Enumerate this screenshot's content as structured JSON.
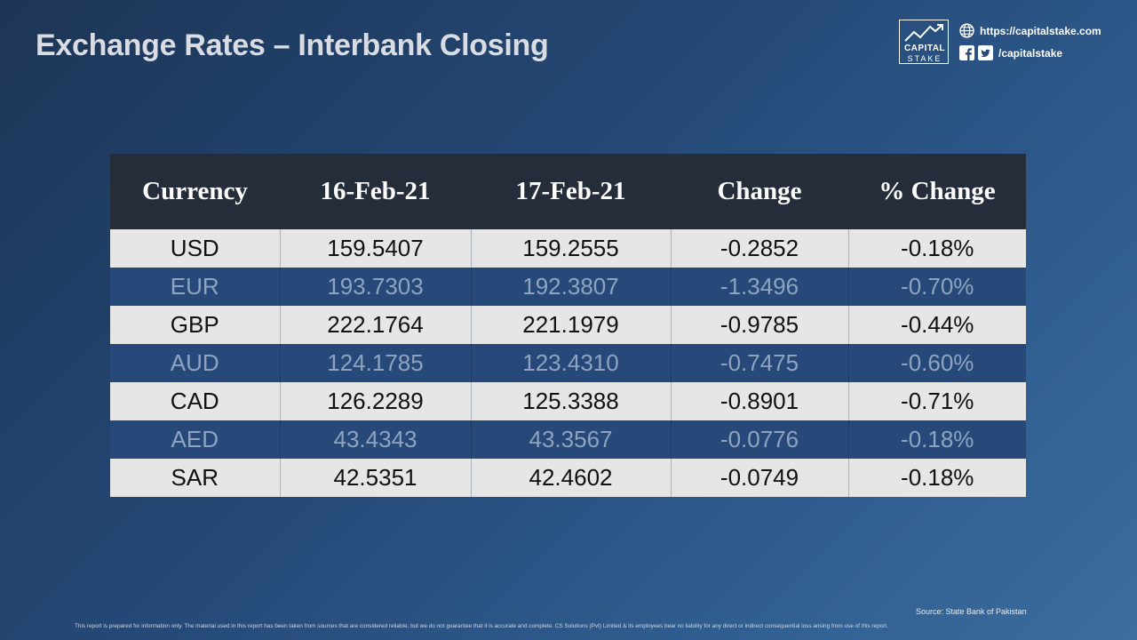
{
  "title": "Exchange Rates – Interbank Closing",
  "brand": {
    "logo_line1": "CAPITAL",
    "logo_line2": "STAKE",
    "website": "https://capitalstake.com",
    "social_handle": "/capitalstake",
    "icons": [
      "globe-icon",
      "facebook-icon",
      "twitter-icon"
    ]
  },
  "table": {
    "headers": [
      "Currency",
      "16-Feb-21",
      "17-Feb-21",
      "Change",
      "% Change"
    ],
    "rows": [
      [
        "USD",
        "159.5407",
        "159.2555",
        "-0.2852",
        "-0.18%"
      ],
      [
        "EUR",
        "193.7303",
        "192.3807",
        "-1.3496",
        "-0.70%"
      ],
      [
        "GBP",
        "222.1764",
        "221.1979",
        "-0.9785",
        "-0.44%"
      ],
      [
        "AUD",
        "124.1785",
        "123.4310",
        "-0.7475",
        "-0.60%"
      ],
      [
        "CAD",
        "126.2289",
        "125.3388",
        "-0.8901",
        "-0.71%"
      ],
      [
        "AED",
        "43.4343",
        "43.3567",
        "-0.0776",
        "-0.18%"
      ],
      [
        "SAR",
        "42.5351",
        "42.4602",
        "-0.0749",
        "-0.18%"
      ]
    ]
  },
  "source": "Source: State Bank of Pakistan",
  "disclaimer": "This report is prepared for information only. The material used in this report has been taken from sources that are considered reliable, but we do not guarantee that it is accurate and complete. CS Solutions (Pvt) Limited & its employees bear no liability for any direct or indirect consequential loss arising from use of this report.",
  "colors": {
    "header_bg": "#262d3a",
    "light_row": "#e6e6e6",
    "dark_row": "#27497a",
    "background": "#254a78"
  }
}
